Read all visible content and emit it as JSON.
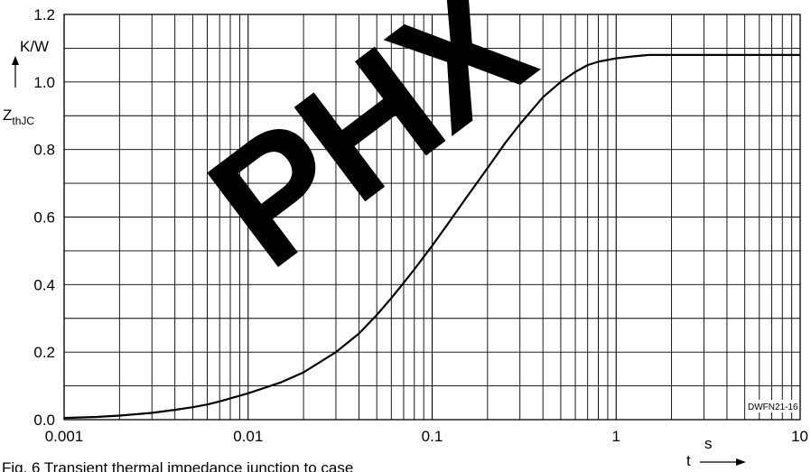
{
  "chart_data": {
    "type": "line",
    "x_scale": "log",
    "xlim": [
      0.001,
      10
    ],
    "ylim": [
      0,
      1.2
    ],
    "x_ticks": [
      {
        "value": 0.001,
        "label": "0.001"
      },
      {
        "value": 0.01,
        "label": "0.01"
      },
      {
        "value": 0.1,
        "label": "0.1"
      },
      {
        "value": 1,
        "label": "1"
      },
      {
        "value": 10,
        "label": "10"
      }
    ],
    "y_ticks": [
      {
        "value": 0.0,
        "label": "0.0"
      },
      {
        "value": 0.2,
        "label": "0.2"
      },
      {
        "value": 0.4,
        "label": "0.4"
      },
      {
        "value": 0.6,
        "label": "0.6"
      },
      {
        "value": 0.8,
        "label": "0.8"
      },
      {
        "value": 1.0,
        "label": "1.0"
      },
      {
        "value": 1.2,
        "label": "1.2"
      }
    ],
    "y_unit": "K/W",
    "y_symbol_main": "Z",
    "y_symbol_sub": "thJC",
    "x_unit": "s",
    "x_symbol": "t",
    "reference_label": "DWFN21-16",
    "grid": true,
    "series": [
      {
        "x": [
          0.001,
          0.0015,
          0.002,
          0.003,
          0.004,
          0.005,
          0.006,
          0.007,
          0.008,
          0.01,
          0.015,
          0.02,
          0.03,
          0.04,
          0.05,
          0.06,
          0.07,
          0.08,
          0.1,
          0.12,
          0.15,
          0.2,
          0.25,
          0.3,
          0.4,
          0.5,
          0.6,
          0.7,
          0.8,
          1.0,
          1.2,
          1.5,
          2,
          3,
          5,
          10
        ],
        "y": [
          0.005,
          0.008,
          0.012,
          0.02,
          0.029,
          0.037,
          0.045,
          0.054,
          0.063,
          0.078,
          0.11,
          0.14,
          0.2,
          0.255,
          0.31,
          0.36,
          0.405,
          0.445,
          0.515,
          0.575,
          0.65,
          0.745,
          0.82,
          0.875,
          0.955,
          1.0,
          1.03,
          1.05,
          1.06,
          1.07,
          1.075,
          1.08,
          1.08,
          1.08,
          1.08,
          1.08
        ]
      }
    ]
  },
  "caption": "Fig. 6 Transient thermal impedance junction to case",
  "watermark_text": "PHX"
}
